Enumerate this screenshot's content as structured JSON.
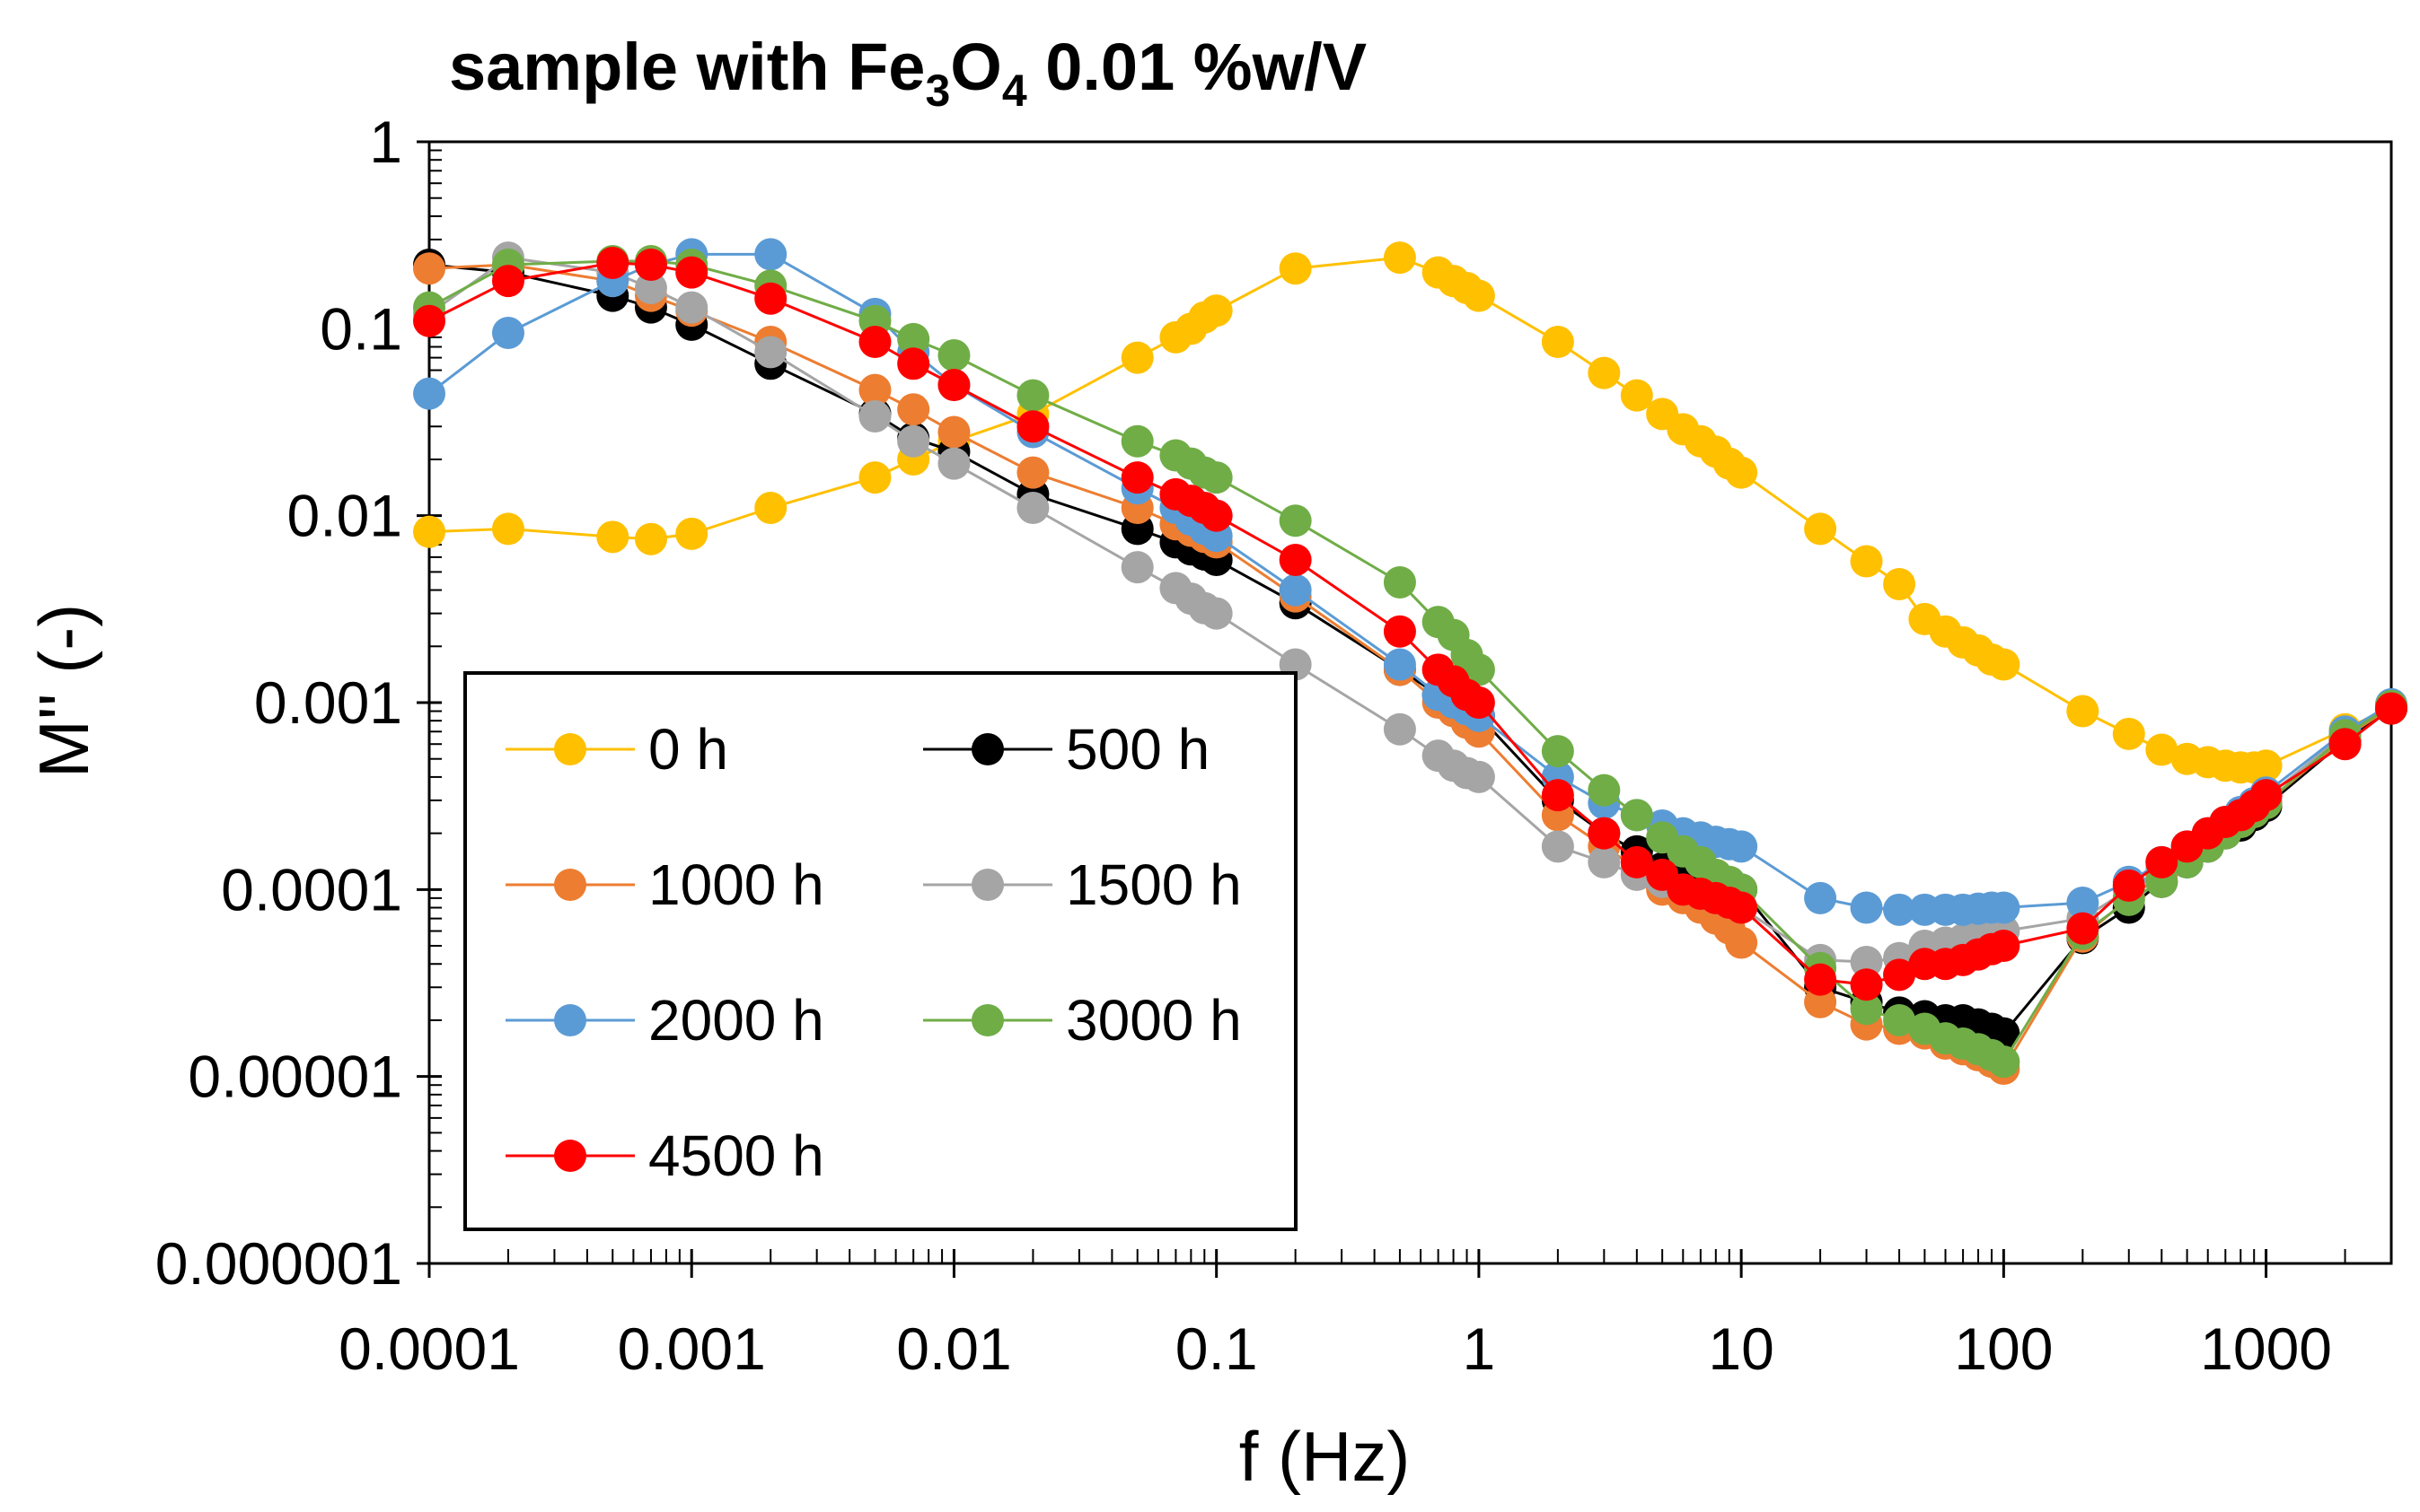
{
  "chart_data": {
    "type": "line",
    "title_parts": [
      "sample with Fe",
      "3",
      "O",
      "4",
      " 0.01 %w/V"
    ],
    "xlabel": "f (Hz)",
    "ylabel": "M'' (-)",
    "xscale": "log",
    "yscale": "log",
    "xlim": [
      0.0001,
      3000
    ],
    "ylim": [
      1e-06,
      1
    ],
    "x_ticks": [
      0.0001,
      0.001,
      0.01,
      0.1,
      1,
      10,
      100,
      1000
    ],
    "x_tick_labels": [
      "0.0001",
      "0.001",
      "0.01",
      "0.1",
      "1",
      "10",
      "100",
      "1000"
    ],
    "y_ticks": [
      1,
      0.1,
      0.01,
      0.001,
      0.0001,
      1e-05,
      1e-06
    ],
    "y_tick_labels": [
      "1",
      "0.1",
      "0.01",
      "0.001",
      "0.0001",
      "0.00001",
      "0.000001"
    ],
    "grid": false,
    "legend_position": "bottom-left",
    "series": [
      {
        "name": "0 h",
        "color": "#FFC000",
        "x": [
          0.0001,
          0.0002,
          0.0005,
          0.0007,
          0.001,
          0.002,
          0.005,
          0.007,
          0.01,
          0.02,
          0.05,
          0.07,
          0.08,
          0.09,
          0.1,
          0.2,
          0.5,
          0.7,
          0.8,
          0.9,
          1,
          2,
          3,
          4,
          5,
          6,
          7,
          8,
          9,
          10,
          20,
          30,
          40,
          50,
          60,
          70,
          80,
          90,
          100,
          200,
          300,
          400,
          500,
          600,
          700,
          800,
          900,
          1000,
          2000,
          3000
        ],
        "y": [
          0.0082,
          0.0085,
          0.0077,
          0.0075,
          0.008,
          0.011,
          0.016,
          0.02,
          0.025,
          0.035,
          0.07,
          0.09,
          0.1,
          0.115,
          0.125,
          0.21,
          0.24,
          0.2,
          0.18,
          0.165,
          0.15,
          0.085,
          0.058,
          0.044,
          0.035,
          0.029,
          0.025,
          0.022,
          0.019,
          0.017,
          0.0085,
          0.0057,
          0.0043,
          0.0028,
          0.0024,
          0.0021,
          0.0019,
          0.0017,
          0.0016,
          0.0009,
          0.00068,
          0.00056,
          0.0005,
          0.00048,
          0.00046,
          0.00045,
          0.00045,
          0.00046,
          0.00072,
          0.00095
        ]
      },
      {
        "name": "500 h",
        "color": "#000000",
        "x": [
          0.0001,
          0.0002,
          0.0005,
          0.0007,
          0.001,
          0.002,
          0.005,
          0.007,
          0.01,
          0.02,
          0.05,
          0.07,
          0.08,
          0.09,
          0.1,
          0.2,
          0.5,
          0.7,
          0.8,
          0.9,
          1,
          2,
          3,
          4,
          5,
          6,
          7,
          8,
          9,
          10,
          20,
          30,
          40,
          50,
          60,
          70,
          80,
          90,
          100,
          200,
          300,
          400,
          500,
          600,
          700,
          800,
          900,
          1000,
          2000,
          3000
        ],
        "y": [
          0.22,
          0.2,
          0.15,
          0.13,
          0.105,
          0.065,
          0.035,
          0.026,
          0.022,
          0.013,
          0.0085,
          0.0072,
          0.0066,
          0.0062,
          0.0058,
          0.0034,
          0.0015,
          0.0011,
          0.001,
          0.0009,
          0.00085,
          0.0003,
          0.0002,
          0.00016,
          0.00013,
          0.00012,
          0.000115,
          0.00011,
          0.000105,
          0.0001,
          3e-05,
          2.5e-05,
          2.2e-05,
          2.1e-05,
          2e-05,
          2e-05,
          1.9e-05,
          1.8e-05,
          1.7e-05,
          5.5e-05,
          8e-05,
          0.00011,
          0.00014,
          0.00017,
          0.0002,
          0.00022,
          0.00025,
          0.00028,
          0.00063,
          0.00093
        ]
      },
      {
        "name": "1000 h",
        "color": "#ED7D31",
        "x": [
          0.0001,
          0.0002,
          0.0005,
          0.0007,
          0.001,
          0.002,
          0.005,
          0.007,
          0.01,
          0.02,
          0.05,
          0.07,
          0.08,
          0.09,
          0.1,
          0.2,
          0.5,
          0.7,
          0.8,
          0.9,
          1,
          2,
          3,
          4,
          5,
          6,
          7,
          8,
          9,
          10,
          20,
          30,
          40,
          50,
          60,
          70,
          80,
          90,
          100,
          200,
          300,
          400,
          500,
          600,
          700,
          800,
          900,
          1000,
          2000,
          3000
        ],
        "y": [
          0.21,
          0.22,
          0.18,
          0.15,
          0.125,
          0.085,
          0.047,
          0.037,
          0.028,
          0.017,
          0.011,
          0.009,
          0.0083,
          0.0077,
          0.0072,
          0.0037,
          0.0015,
          0.001,
          0.0009,
          0.00078,
          0.0007,
          0.00025,
          0.00017,
          0.00013,
          0.0001,
          9e-05,
          8e-05,
          7e-05,
          6.2e-05,
          5.2e-05,
          2.5e-05,
          1.9e-05,
          1.8e-05,
          1.7e-05,
          1.5e-05,
          1.4e-05,
          1.3e-05,
          1.2e-05,
          1.1e-05,
          5.6e-05,
          9e-05,
          0.00012,
          0.00015,
          0.00018,
          0.00021,
          0.00023,
          0.00026,
          0.00029,
          0.00065,
          0.00095
        ]
      },
      {
        "name": "1500 h",
        "color": "#A5A5A5",
        "x": [
          0.0001,
          0.0002,
          0.0005,
          0.0007,
          0.001,
          0.002,
          0.005,
          0.007,
          0.01,
          0.02,
          0.05,
          0.07,
          0.08,
          0.09,
          0.1,
          0.2,
          0.5,
          0.7,
          0.8,
          0.9,
          1,
          2,
          3,
          4,
          5,
          6,
          7,
          8,
          9,
          10,
          20,
          30,
          40,
          50,
          60,
          70,
          80,
          90,
          100,
          200,
          300,
          400,
          500,
          600,
          700,
          800,
          900,
          1000,
          2000,
          3000
        ],
        "y": [
          0.12,
          0.24,
          0.2,
          0.165,
          0.13,
          0.075,
          0.034,
          0.025,
          0.019,
          0.011,
          0.0053,
          0.0041,
          0.0036,
          0.0032,
          0.003,
          0.0016,
          0.00072,
          0.00052,
          0.00046,
          0.00042,
          0.0004,
          0.00017,
          0.00014,
          0.00012,
          0.00011,
          0.0001,
          9.5e-05,
          9e-05,
          8.5e-05,
          8e-05,
          4.2e-05,
          4.1e-05,
          4.3e-05,
          5e-05,
          5.2e-05,
          5.4e-05,
          5.6e-05,
          5.8e-05,
          6e-05,
          7e-05,
          0.0001,
          0.00013,
          0.00016,
          0.00019,
          0.00022,
          0.00025,
          0.00028,
          0.00031,
          0.00068,
          0.00097
        ]
      },
      {
        "name": "2000 h",
        "color": "#5B9BD5",
        "x": [
          0.0001,
          0.0002,
          0.0005,
          0.0007,
          0.001,
          0.002,
          0.005,
          0.007,
          0.01,
          0.02,
          0.05,
          0.07,
          0.08,
          0.09,
          0.1,
          0.2,
          0.5,
          0.7,
          0.8,
          0.9,
          1,
          2,
          3,
          4,
          5,
          6,
          7,
          8,
          9,
          10,
          20,
          30,
          40,
          50,
          60,
          70,
          80,
          90,
          100,
          200,
          300,
          400,
          500,
          600,
          700,
          800,
          900,
          1000,
          2000,
          3000
        ],
        "y": [
          0.045,
          0.095,
          0.18,
          0.22,
          0.25,
          0.25,
          0.12,
          0.075,
          0.05,
          0.028,
          0.014,
          0.011,
          0.0095,
          0.0085,
          0.0078,
          0.004,
          0.0016,
          0.0011,
          0.001,
          0.00092,
          0.00085,
          0.0004,
          0.00029,
          0.00025,
          0.00022,
          0.0002,
          0.00019,
          0.00018,
          0.000175,
          0.00017,
          9e-05,
          8e-05,
          7.8e-05,
          7.8e-05,
          7.8e-05,
          7.8e-05,
          7.9e-05,
          8e-05,
          8e-05,
          8.5e-05,
          0.00011,
          0.00014,
          0.00017,
          0.0002,
          0.00023,
          0.00026,
          0.00029,
          0.00033,
          0.0007,
          0.00098
        ]
      },
      {
        "name": "3000 h",
        "color": "#70AD47",
        "x": [
          0.0001,
          0.0002,
          0.0005,
          0.0007,
          0.001,
          0.002,
          0.005,
          0.007,
          0.01,
          0.02,
          0.05,
          0.07,
          0.08,
          0.09,
          0.1,
          0.2,
          0.5,
          0.7,
          0.8,
          0.9,
          1,
          2,
          3,
          4,
          5,
          6,
          7,
          8,
          9,
          10,
          20,
          30,
          40,
          50,
          60,
          70,
          80,
          90,
          100,
          200,
          300,
          400,
          500,
          600,
          700,
          800,
          900,
          1000,
          2000,
          3000
        ],
        "y": [
          0.13,
          0.22,
          0.23,
          0.23,
          0.22,
          0.17,
          0.11,
          0.088,
          0.072,
          0.044,
          0.025,
          0.021,
          0.019,
          0.017,
          0.016,
          0.0094,
          0.0044,
          0.0027,
          0.0023,
          0.0018,
          0.0015,
          0.00055,
          0.00034,
          0.00025,
          0.00019,
          0.00016,
          0.00014,
          0.00012,
          0.00011,
          0.0001,
          3.8e-05,
          2.3e-05,
          2e-05,
          1.8e-05,
          1.6e-05,
          1.5e-05,
          1.4e-05,
          1.3e-05,
          1.2e-05,
          5.8e-05,
          8.8e-05,
          0.00011,
          0.00014,
          0.00017,
          0.0002,
          0.00023,
          0.00026,
          0.00029,
          0.00067,
          0.00096
        ]
      },
      {
        "name": "4500 h",
        "color": "#FF0000",
        "x": [
          0.0001,
          0.0002,
          0.0005,
          0.0007,
          0.001,
          0.002,
          0.005,
          0.007,
          0.01,
          0.02,
          0.05,
          0.07,
          0.08,
          0.09,
          0.1,
          0.2,
          0.5,
          0.7,
          0.8,
          0.9,
          1,
          2,
          3,
          4,
          5,
          6,
          7,
          8,
          9,
          10,
          20,
          30,
          40,
          50,
          60,
          70,
          80,
          90,
          100,
          200,
          300,
          400,
          500,
          600,
          700,
          800,
          900,
          1000,
          2000,
          3000
        ],
        "y": [
          0.11,
          0.18,
          0.225,
          0.22,
          0.2,
          0.145,
          0.085,
          0.065,
          0.05,
          0.03,
          0.016,
          0.013,
          0.012,
          0.011,
          0.01,
          0.0058,
          0.0024,
          0.0015,
          0.0013,
          0.0011,
          0.001,
          0.00032,
          0.0002,
          0.00014,
          0.00012,
          0.0001,
          9.5e-05,
          9e-05,
          8.5e-05,
          8e-05,
          3.3e-05,
          3.1e-05,
          3.5e-05,
          4e-05,
          4e-05,
          4.2e-05,
          4.5e-05,
          4.8e-05,
          5e-05,
          6.2e-05,
          0.000105,
          0.00014,
          0.00017,
          0.0002,
          0.00023,
          0.00025,
          0.00028,
          0.00032,
          0.0006,
          0.00093
        ]
      }
    ]
  }
}
